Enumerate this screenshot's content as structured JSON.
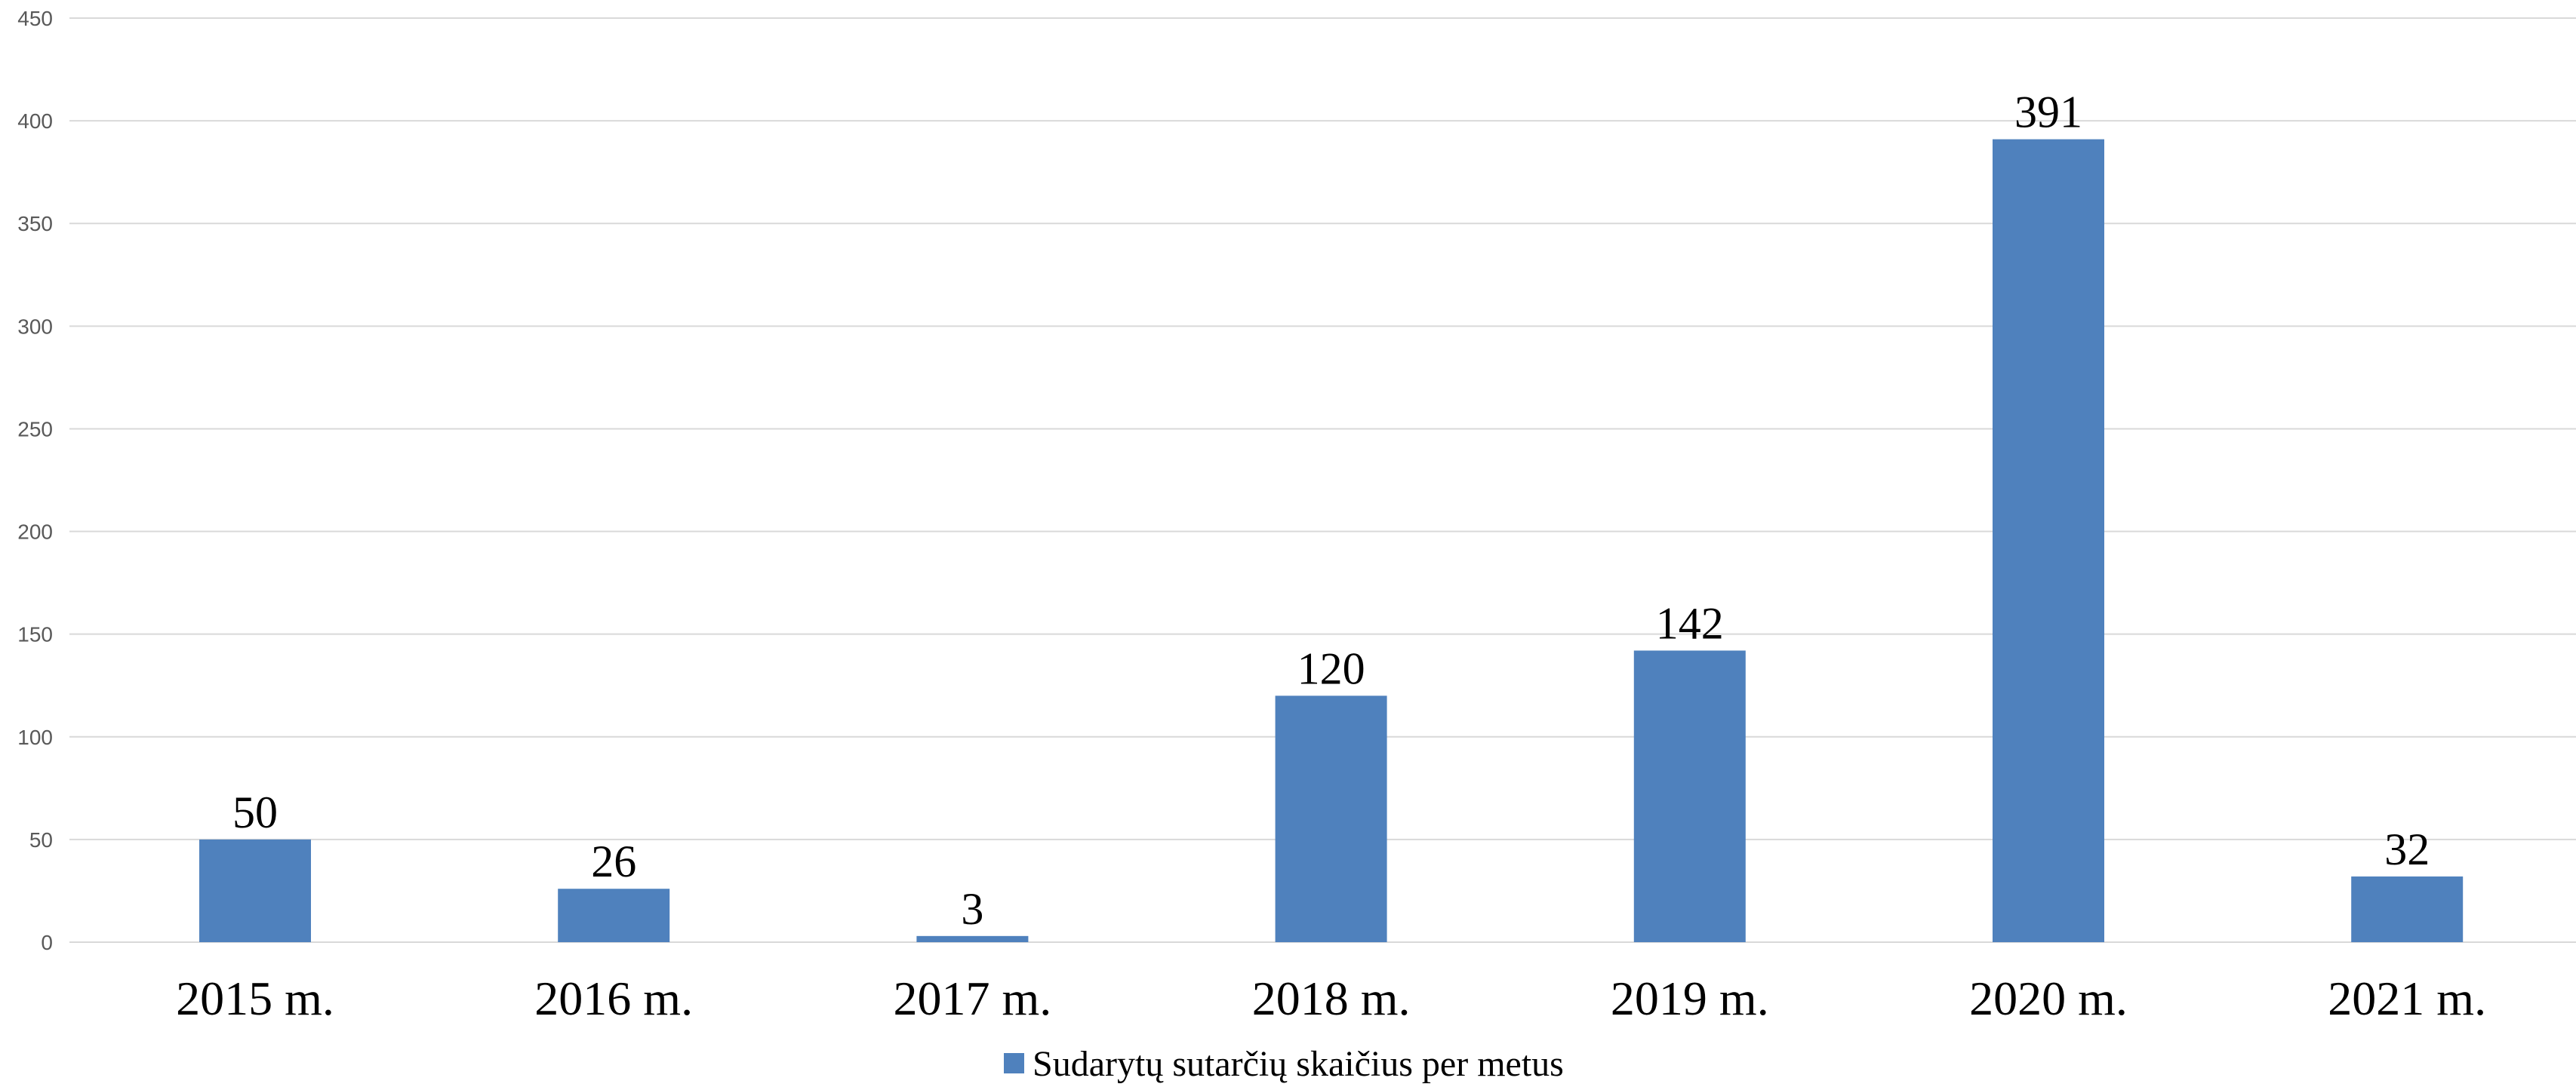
{
  "colors": {
    "bar": "#4f81bd",
    "grid": "#d9d9d9",
    "background": "#ffffff"
  },
  "chart_data": {
    "type": "bar",
    "title": "",
    "xlabel": "",
    "ylabel": "",
    "categories": [
      "2015 m.",
      "2016 m.",
      "2017 m.",
      "2018 m.",
      "2019 m.",
      "2020 m.",
      "2021 m."
    ],
    "series": [
      {
        "name": "Sudarytų sutarčių skaičius per metus",
        "values": [
          50,
          26,
          3,
          120,
          142,
          391,
          32
        ],
        "color": "#4f81bd"
      }
    ],
    "data_labels": [
      "50",
      "26",
      "3",
      "120",
      "142",
      "391",
      "32"
    ],
    "ylim": [
      0,
      450
    ],
    "yticks": [
      0,
      50,
      100,
      150,
      200,
      250,
      300,
      350,
      400,
      450
    ],
    "grid": true,
    "legend_position": "bottom"
  }
}
